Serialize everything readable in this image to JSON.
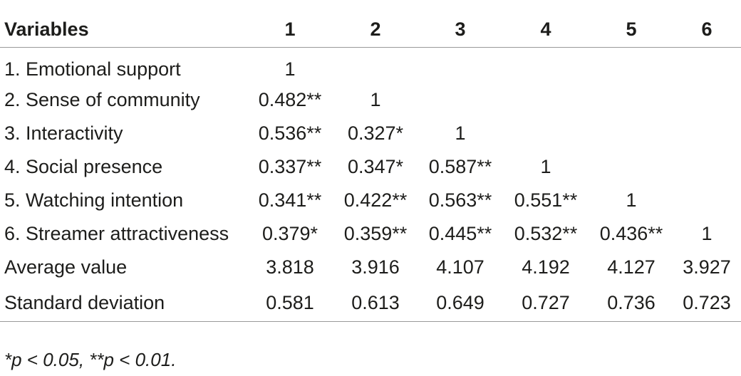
{
  "table": {
    "header": [
      "Variables",
      "1",
      "2",
      "3",
      "4",
      "5",
      "6"
    ],
    "rows": [
      [
        "1. Emotional support",
        "1",
        "",
        "",
        "",
        "",
        ""
      ],
      [
        "2. Sense of community",
        "0.482**",
        "1",
        "",
        "",
        "",
        ""
      ],
      [
        "3. Interactivity",
        "0.536**",
        "0.327*",
        "1",
        "",
        "",
        ""
      ],
      [
        "4. Social presence",
        "0.337**",
        "0.347*",
        "0.587**",
        "1",
        "",
        ""
      ],
      [
        "5. Watching intention",
        "0.341**",
        "0.422**",
        "0.563**",
        "0.551**",
        "1",
        ""
      ],
      [
        "6. Streamer attractiveness",
        "0.379*",
        "0.359**",
        "0.445**",
        "0.532**",
        "0.436**",
        "1"
      ],
      [
        "Average value",
        "3.818",
        "3.916",
        "4.107",
        "4.192",
        "4.127",
        "3.927"
      ],
      [
        "Standard deviation",
        "0.581",
        "0.613",
        "0.649",
        "0.727",
        "0.736",
        "0.723"
      ]
    ]
  },
  "footnote": "*p < 0.05, **p < 0.01."
}
